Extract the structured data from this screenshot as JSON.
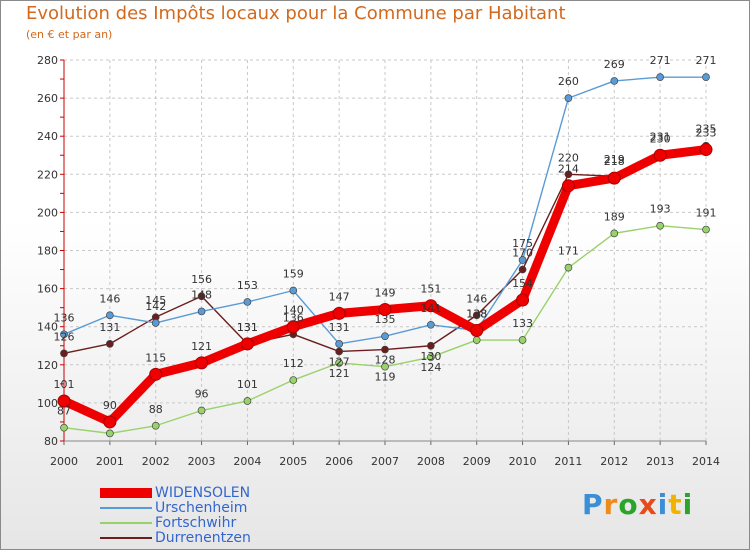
{
  "chart_data": {
    "type": "line",
    "title": "Evolution des Impôts locaux pour la Commune par Habitant",
    "subtitle": "(en € et par an)",
    "x": [
      "2000",
      "2001",
      "2002",
      "2003",
      "2004",
      "2005",
      "2006",
      "2007",
      "2008",
      "2009",
      "2010",
      "2011",
      "2012",
      "2013",
      "2014"
    ],
    "ylim": [
      80,
      280
    ],
    "yticks": [
      80,
      100,
      120,
      140,
      160,
      180,
      200,
      220,
      240,
      260,
      280
    ],
    "grid": true,
    "series": [
      {
        "name": "Durrenentzen",
        "color": "#6b1e1e",
        "values": [
          126,
          131,
          145,
          156,
          131,
          136,
          127,
          128,
          130,
          146,
          170,
          220,
          219,
          231,
          235
        ],
        "labels": [
          "126",
          "131",
          "145",
          "156",
          "131",
          "136",
          "127",
          "128",
          "130",
          "146",
          "170",
          "220",
          "219",
          "231",
          "235"
        ]
      },
      {
        "name": "Urschenheim",
        "color": "#5b9bd5",
        "values": [
          136,
          146,
          142,
          148,
          153,
          159,
          131,
          135,
          141,
          138,
          175,
          260,
          269,
          271,
          271
        ],
        "labels": [
          "136",
          "146",
          "142",
          "148",
          "153",
          "159",
          "131",
          "135",
          "141",
          "138",
          "175",
          "260",
          "269",
          "271",
          "271"
        ]
      },
      {
        "name": "Fortschwihr",
        "color": "#99d16b",
        "values": [
          87,
          84,
          88,
          96,
          101,
          112,
          121,
          119,
          124,
          133,
          133,
          171,
          189,
          193,
          191
        ],
        "labels": [
          "87",
          "",
          "88",
          "96",
          "101",
          "112",
          "121",
          "119",
          "124",
          "",
          "133",
          "171",
          "189",
          "193",
          "191"
        ]
      },
      {
        "name": "WIDENSOLEN",
        "color": "#ee0000",
        "values": [
          101,
          90,
          115,
          121,
          131,
          140,
          147,
          149,
          151,
          138,
          154,
          214,
          218,
          230,
          233
        ],
        "labels": [
          "101",
          "90",
          "115",
          "121",
          "131",
          "140",
          "147",
          "149",
          "151",
          "138",
          "154",
          "214",
          "218",
          "230",
          "233"
        ]
      }
    ],
    "legend": [
      "WIDENSOLEN",
      "Urschenheim",
      "Fortschwihr",
      "Durrenentzen"
    ],
    "legend_position": "bottom-left"
  },
  "logo": {
    "letters": [
      "P",
      "r",
      "o",
      "x",
      "i",
      "t",
      "i"
    ],
    "colors": [
      "#3b8fd6",
      "#f08a1a",
      "#2aa52a",
      "#e84a1a",
      "#3b8fd6",
      "#f0b400",
      "#2aa52a"
    ]
  }
}
